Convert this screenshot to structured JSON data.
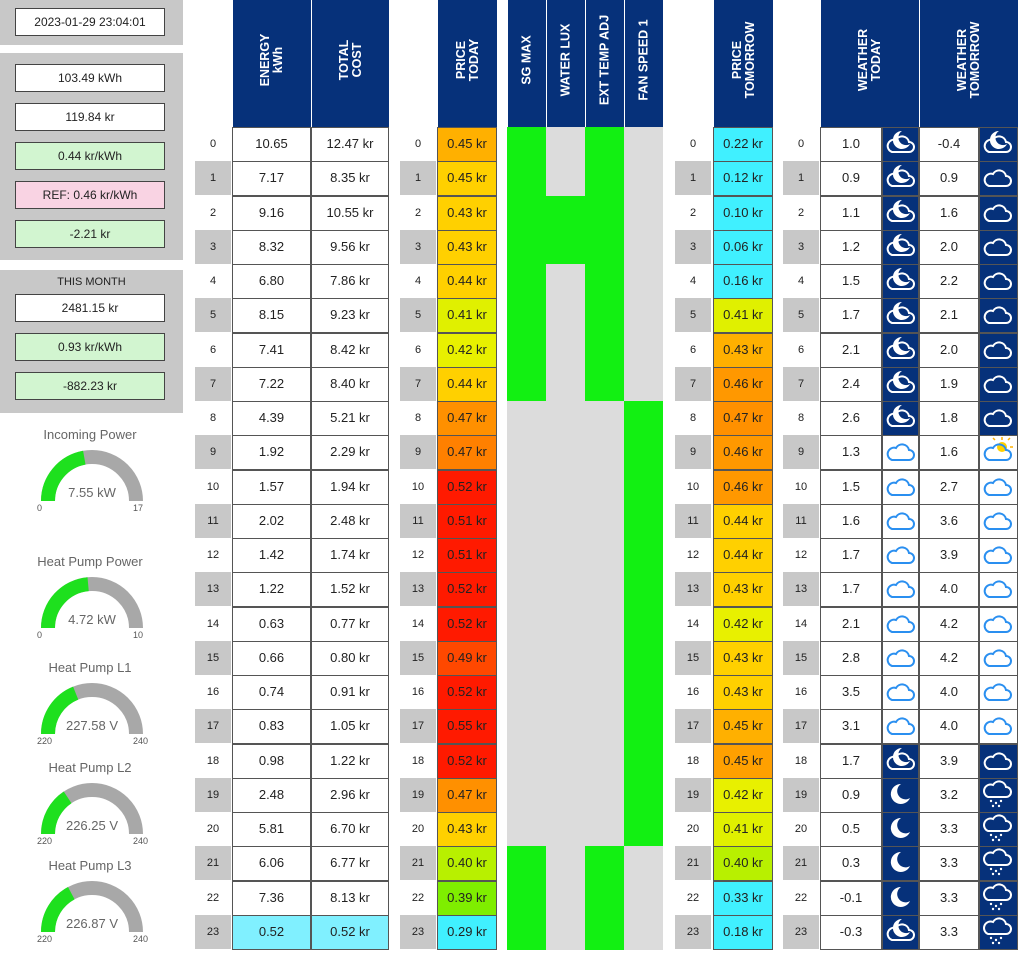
{
  "datetime": "2023-01-29 23:04:01",
  "summary": {
    "energy": "103.49 kWh",
    "cost": "119.84 kr",
    "avg_price": "0.44 kr/kWh",
    "ref": "REF:  0.46 kr/kWh",
    "diff": "-2.21 kr"
  },
  "month": {
    "title": "THIS MONTH",
    "cost": "2481.15 kr",
    "avg_price": "0.93 kr/kWh",
    "diff": "-882.23 kr"
  },
  "gauges": [
    {
      "title": "Incoming Power",
      "value": "7.55 kW",
      "min": "0",
      "max": "17",
      "fraction": 0.444
    },
    {
      "title": "Heat Pump Power",
      "value": "4.72 kW",
      "min": "0",
      "max": "10",
      "fraction": 0.472
    },
    {
      "title": "Heat Pump L1",
      "value": "227.58 V",
      "min": "220",
      "max": "240",
      "fraction": 0.379
    },
    {
      "title": "Heat Pump L2",
      "value": "226.25 V",
      "min": "220",
      "max": "240",
      "fraction": 0.313
    },
    {
      "title": "Heat Pump L3",
      "value": "226.87 V",
      "min": "220",
      "max": "240",
      "fraction": 0.344
    }
  ],
  "headers": {
    "energy": "ENERGY\nkWh",
    "total_cost": "TOTAL\nCOST",
    "price_today": "PRICE\nTODAY",
    "sg_max": "SG MAX",
    "water_lux": "WATER LUX",
    "ext_temp_adj": "EXT TEMP ADJ",
    "fan_speed": "FAN SPEED 1",
    "price_tomorrow": "PRICE\nTOMORROW",
    "weather_today": "WEATHER\nTODAY",
    "weather_tomorrow": "WEATHER\nTOMORROW"
  },
  "hours": [
    "0",
    "1",
    "2",
    "3",
    "4",
    "5",
    "6",
    "7",
    "8",
    "9",
    "10",
    "11",
    "12",
    "13",
    "14",
    "15",
    "16",
    "17",
    "18",
    "19",
    "20",
    "21",
    "22",
    "23"
  ],
  "energy": [
    "10.65",
    "7.17",
    "9.16",
    "8.32",
    "6.80",
    "8.15",
    "7.41",
    "7.22",
    "4.39",
    "1.92",
    "1.57",
    "2.02",
    "1.42",
    "1.22",
    "0.63",
    "0.66",
    "0.74",
    "0.83",
    "0.98",
    "2.48",
    "5.81",
    "6.06",
    "7.36",
    "0.52"
  ],
  "total_cost": [
    "12.47 kr",
    "8.35 kr",
    "10.55 kr",
    "9.56 kr",
    "7.86 kr",
    "9.23 kr",
    "8.42 kr",
    "8.40 kr",
    "5.21 kr",
    "2.29 kr",
    "1.94 kr",
    "2.48 kr",
    "1.74 kr",
    "1.52 kr",
    "0.77 kr",
    "0.80 kr",
    "0.91 kr",
    "1.05 kr",
    "1.22 kr",
    "2.96 kr",
    "6.70 kr",
    "6.77 kr",
    "8.13 kr",
    "0.52 kr"
  ],
  "price_today": [
    "0.45 kr",
    "0.45 kr",
    "0.43 kr",
    "0.43 kr",
    "0.44 kr",
    "0.41 kr",
    "0.42 kr",
    "0.44 kr",
    "0.47 kr",
    "0.47 kr",
    "0.52 kr",
    "0.51 kr",
    "0.51 kr",
    "0.52 kr",
    "0.52 kr",
    "0.49 kr",
    "0.52 kr",
    "0.55 kr",
    "0.52 kr",
    "0.47 kr",
    "0.43 kr",
    "0.40 kr",
    "0.39 kr",
    "0.29 kr"
  ],
  "price_today_colors": [
    "#ffb000",
    "#ffd000",
    "#ffd000",
    "#ffd000",
    "#ffd000",
    "#e0f000",
    "#e8f000",
    "#ffd000",
    "#ff9000",
    "#ff8000",
    "#ff1a00",
    "#ff1a00",
    "#ff1a00",
    "#ff1a00",
    "#ff1a00",
    "#ff4800",
    "#ff1a00",
    "#ff1a00",
    "#ff1a00",
    "#ff9000",
    "#ffd000",
    "#b8f000",
    "#7fee00",
    "#40f0ff"
  ],
  "price_tomorrow": [
    "0.22 kr",
    "0.12 kr",
    "0.10 kr",
    "0.06 kr",
    "0.16 kr",
    "0.41 kr",
    "0.43 kr",
    "0.46 kr",
    "0.47 kr",
    "0.46 kr",
    "0.46 kr",
    "0.44 kr",
    "0.44 kr",
    "0.43 kr",
    "0.42 kr",
    "0.43 kr",
    "0.43 kr",
    "0.45 kr",
    "0.45 kr",
    "0.42 kr",
    "0.41 kr",
    "0.40 kr",
    "0.33 kr",
    "0.18 kr"
  ],
  "price_tomorrow_colors": [
    "#40f0ff",
    "#40f0ff",
    "#40f0ff",
    "#40f0ff",
    "#40f0ff",
    "#e0f000",
    "#ffb000",
    "#ff9800",
    "#ff9000",
    "#ff9800",
    "#ff9800",
    "#ffd000",
    "#ffd000",
    "#ffd000",
    "#e8f000",
    "#ffd000",
    "#ffd000",
    "#ffb000",
    "#ffa000",
    "#e8f000",
    "#e0f000",
    "#b8f000",
    "#40f0ff",
    "#40f0ff"
  ],
  "energy_highlight": "#80f0ff",
  "controls": {
    "sg_max": [
      1,
      1,
      1,
      1,
      1,
      1,
      1,
      1,
      0,
      0,
      0,
      0,
      0,
      0,
      0,
      0,
      0,
      0,
      0,
      0,
      0,
      1,
      1,
      1
    ],
    "water_lux": [
      0,
      0,
      1,
      1,
      0,
      0,
      0,
      0,
      0,
      0,
      0,
      0,
      0,
      0,
      0,
      0,
      0,
      0,
      0,
      0,
      0,
      0,
      0,
      0
    ],
    "ext_temp_adj": [
      1,
      1,
      1,
      1,
      1,
      1,
      1,
      1,
      0,
      0,
      0,
      0,
      0,
      0,
      0,
      0,
      0,
      0,
      0,
      0,
      0,
      1,
      1,
      1
    ],
    "fan_speed": [
      0,
      0,
      0,
      0,
      0,
      0,
      0,
      0,
      1,
      1,
      1,
      1,
      1,
      1,
      1,
      1,
      1,
      1,
      1,
      1,
      1,
      0,
      0,
      0
    ]
  },
  "weather_today": [
    "1.0",
    "0.9",
    "1.1",
    "1.2",
    "1.5",
    "1.7",
    "2.1",
    "2.4",
    "2.6",
    "1.3",
    "1.5",
    "1.6",
    "1.7",
    "1.7",
    "2.1",
    "2.8",
    "3.5",
    "3.1",
    "1.7",
    "0.9",
    "0.5",
    "0.3",
    "-0.1",
    "-0.3"
  ],
  "weather_today_icons": [
    "moon-cloud-icon",
    "moon-cloud-icon",
    "moon-cloud-icon",
    "moon-cloud-icon",
    "moon-cloud-icon",
    "moon-cloud-icon",
    "moon-cloud-icon",
    "moon-cloud-icon",
    "moon-cloud-icon",
    "cloud-icon",
    "cloud-icon",
    "cloud-icon",
    "cloud-icon",
    "cloud-icon",
    "cloud-icon",
    "cloud-icon",
    "cloud-icon",
    "cloud-icon",
    "moon-cloud-icon",
    "moon-icon",
    "moon-icon",
    "moon-icon",
    "moon-icon",
    "moon-cloud-icon"
  ],
  "weather_tomorrow": [
    "-0.4",
    "0.9",
    "1.6",
    "2.0",
    "2.2",
    "2.1",
    "2.0",
    "1.9",
    "1.8",
    "1.6",
    "2.7",
    "3.6",
    "3.9",
    "4.0",
    "4.2",
    "4.2",
    "4.0",
    "4.0",
    "3.9",
    "3.2",
    "3.3",
    "3.3",
    "3.3",
    "3.3"
  ],
  "weather_tomorrow_icons": [
    "moon-cloud-icon",
    "cloud-icon",
    "cloud-icon",
    "cloud-icon",
    "cloud-icon",
    "cloud-icon",
    "cloud-icon",
    "cloud-icon",
    "cloud-icon",
    "sun-cloud-icon",
    "cloud-icon",
    "cloud-icon",
    "cloud-icon",
    "cloud-icon",
    "cloud-icon",
    "cloud-icon",
    "cloud-icon",
    "cloud-icon",
    "cloud-icon",
    "rain-cloud-icon",
    "rain-cloud-icon",
    "rain-cloud-icon",
    "rain-cloud-icon",
    "rain-cloud-icon"
  ],
  "weather_tomorrow_dark": [
    1,
    1,
    1,
    1,
    1,
    1,
    1,
    1,
    1,
    0,
    0,
    0,
    0,
    0,
    0,
    0,
    0,
    0,
    1,
    1,
    1,
    1,
    1,
    1
  ],
  "weather_today_dark": [
    1,
    1,
    1,
    1,
    1,
    1,
    1,
    1,
    1,
    0,
    0,
    0,
    0,
    0,
    0,
    0,
    0,
    0,
    1,
    1,
    1,
    1,
    1,
    1
  ]
}
